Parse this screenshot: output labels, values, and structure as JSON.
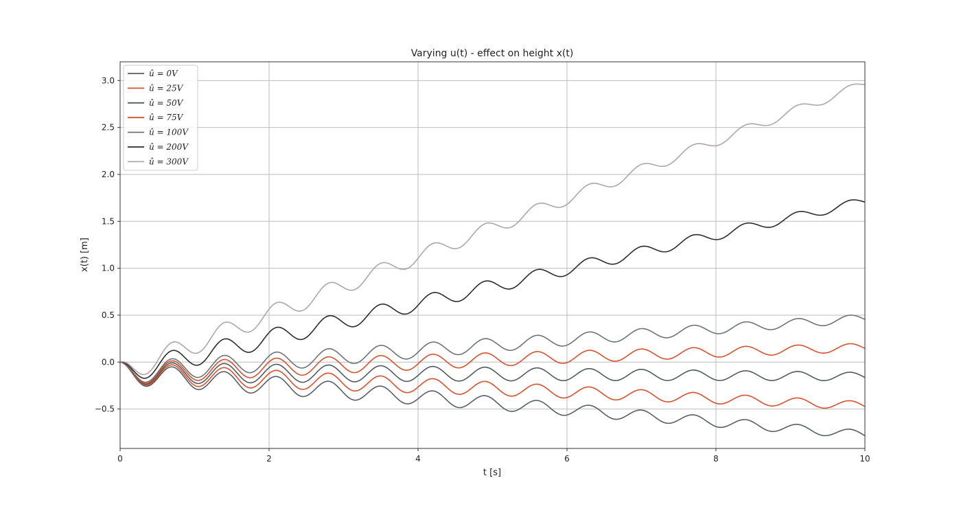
{
  "chart_data": {
    "type": "line",
    "title": "Varying u(t) - effect on height x(t)",
    "xlabel": "t [s]",
    "ylabel": "x(t) [m]",
    "xlim": [
      0,
      10
    ],
    "ylim": [
      -0.92,
      3.2
    ],
    "xticks": [
      "0",
      "2",
      "4",
      "6",
      "8",
      "10"
    ],
    "yticks": [
      "−0.5",
      "0.0",
      "0.5",
      "1.0",
      "1.5",
      "2.0",
      "2.5",
      "3.0"
    ],
    "grid": true,
    "legend_position": "upper-left",
    "oscillation": {
      "amplitude": 0.12,
      "period": 0.7,
      "decay": 0.1
    },
    "series": [
      {
        "name": "û = 0V",
        "color": "#555e66",
        "drift_at_t10": -0.73
      },
      {
        "name": "û = 25V",
        "color": "#d9502a",
        "drift_at_t10": -0.42
      },
      {
        "name": "û = 50V",
        "color": "#4e5a61",
        "drift_at_t10": -0.11
      },
      {
        "name": "û = 75V",
        "color": "#d9502a",
        "drift_at_t10": 0.2
      },
      {
        "name": "û = 100V",
        "color": "#6b7378",
        "drift_at_t10": 0.51
      },
      {
        "name": "û = 200V",
        "color": "#2e2a28",
        "drift_at_t10": 1.76
      },
      {
        "name": "û = 300V",
        "color": "#b3a3a7",
        "drift_at_t10": 3.01
      }
    ]
  }
}
